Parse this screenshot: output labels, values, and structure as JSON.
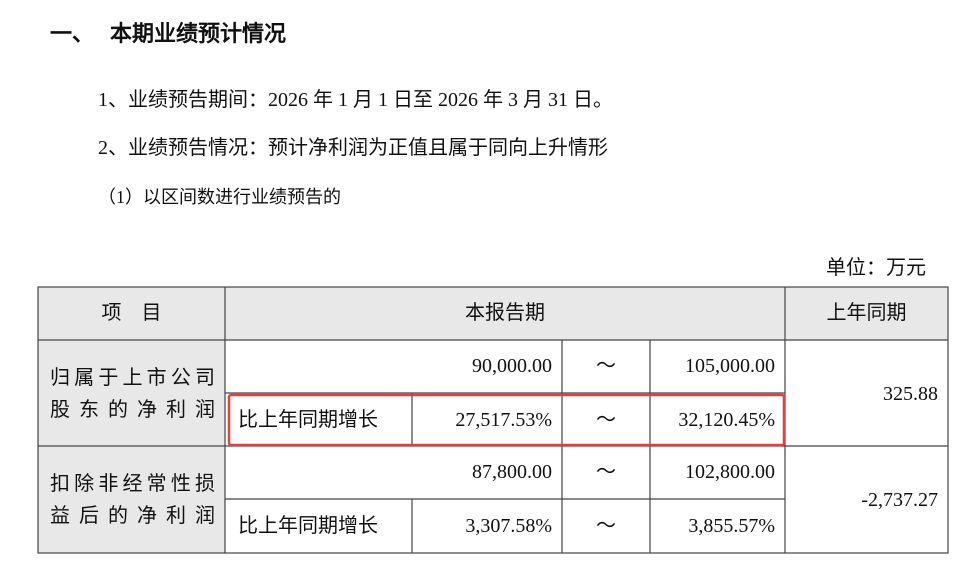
{
  "section": {
    "number": "一、",
    "title": "本期业绩预计情况"
  },
  "items": [
    "1、业绩预告期间：2026 年 1 月 1 日至 2026 年 3 月 31 日。",
    "2、业绩预告情况：预计净利润为正值且属于同向上升情形"
  ],
  "subitem": "（1）以区间数进行业绩预告的",
  "unit": "单位：万元",
  "table": {
    "header": [
      "项　目",
      "本报告期",
      "上年同期"
    ],
    "rows": [
      {
        "label_lines": [
          "归属于上市公司",
          "股东的净利润"
        ],
        "amount": {
          "low": "90,000.00",
          "sep": "～",
          "high": "105,000.00"
        },
        "growth": {
          "label": "比上年同期增长",
          "low": "27,517.53%",
          "sep": "～",
          "high": "32,120.45%"
        },
        "prior": "325.88"
      },
      {
        "label_lines": [
          "扣除非经常性损",
          "益后的净利润"
        ],
        "amount": {
          "low": "87,800.00",
          "sep": "～",
          "high": "102,800.00"
        },
        "growth": {
          "label": "比上年同期增长",
          "low": "3,307.58%",
          "sep": "～",
          "high": "3,855.57%"
        },
        "prior": "-2,737.27"
      }
    ]
  }
}
